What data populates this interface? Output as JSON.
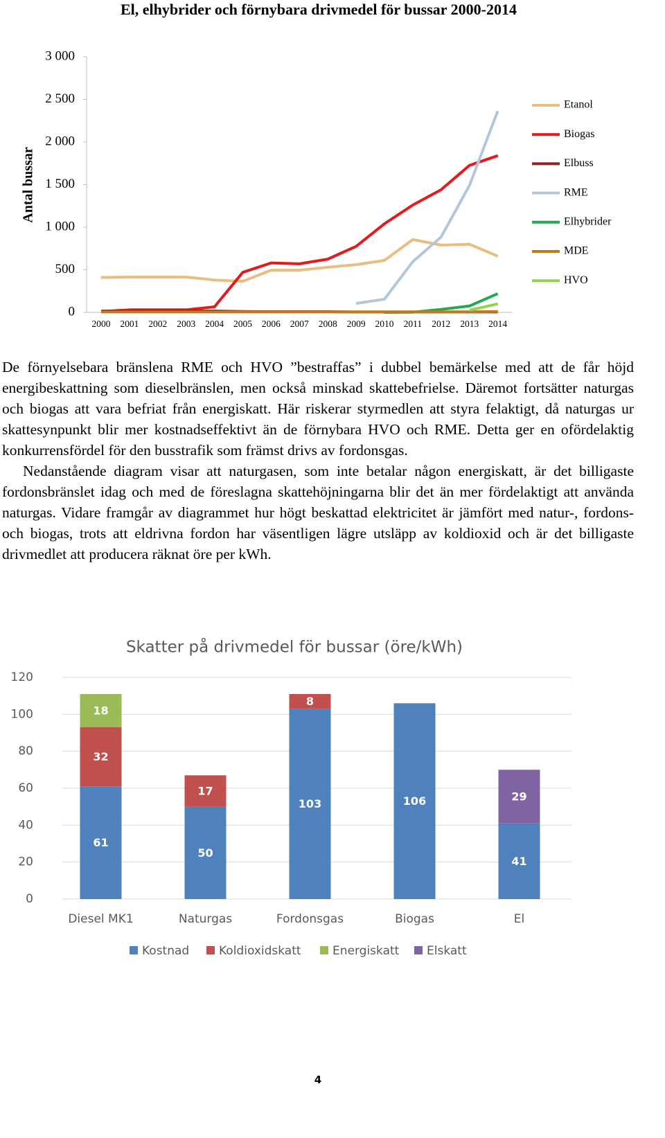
{
  "chart_data": [
    {
      "type": "line",
      "title": "El, elhybrider och förnybara drivmedel för bussar 2000-2014",
      "y_label": "Antal bussar",
      "categories": [
        "2000",
        "2001",
        "2002",
        "2003",
        "2004",
        "2005",
        "2006",
        "2007",
        "2008",
        "2009",
        "2010",
        "2011",
        "2012",
        "2013",
        "2014"
      ],
      "ylim": [
        0,
        3000
      ],
      "yticks": [
        0,
        500,
        {
          "value": 1000,
          "label": "1 000"
        },
        {
          "value": 1500,
          "label": "1 500"
        },
        {
          "value": 2000,
          "label": "2 000"
        },
        {
          "value": 2500,
          "label": "2 500"
        },
        {
          "value": 3000,
          "label": "3 000"
        }
      ],
      "grid": false,
      "legend": "right",
      "series": [
        {
          "name": "Etanol",
          "color": "#e9bd7f",
          "values": [
            410,
            415,
            415,
            415,
            380,
            365,
            495,
            495,
            530,
            560,
            610,
            855,
            790,
            800,
            660
          ]
        },
        {
          "name": "Biogas",
          "color": "#e41a1c",
          "values": [
            10,
            30,
            30,
            30,
            65,
            470,
            580,
            570,
            625,
            775,
            1040,
            1260,
            1440,
            1725,
            1840
          ]
        },
        {
          "name": "Elbuss",
          "color": "#8b2323",
          "values": [
            15,
            15,
            15,
            15,
            15,
            10,
            8,
            8,
            8,
            5,
            5,
            5,
            5,
            5,
            5
          ]
        },
        {
          "name": "RME",
          "color": "#b4c7da",
          "values": [
            null,
            null,
            null,
            null,
            null,
            null,
            null,
            null,
            null,
            105,
            155,
            595,
            885,
            1490,
            2365
          ]
        },
        {
          "name": "Elhybrider",
          "color": "#1faa50",
          "values": [
            null,
            null,
            null,
            null,
            null,
            null,
            null,
            null,
            null,
            null,
            0,
            2,
            35,
            75,
            220
          ]
        },
        {
          "name": "MDE",
          "color": "#c07a1a",
          "values": [
            5,
            5,
            5,
            5,
            5,
            5,
            5,
            5,
            5,
            5,
            5,
            5,
            5,
            5,
            10
          ]
        },
        {
          "name": "HVO",
          "color": "#92d050",
          "values": [
            null,
            null,
            null,
            null,
            null,
            null,
            null,
            null,
            null,
            null,
            null,
            null,
            null,
            25,
            100
          ]
        }
      ]
    },
    {
      "type": "bar",
      "stacked": true,
      "title": "Skatter på drivmedel för bussar (öre/kWh)",
      "categories": [
        "Diesel MK1",
        "Naturgas",
        "Fordonsgas",
        "Biogas",
        "El"
      ],
      "ylim": [
        0,
        120
      ],
      "yticks": [
        0,
        20,
        40,
        60,
        80,
        100,
        120
      ],
      "grid": true,
      "legend": "bottom",
      "series": [
        {
          "name": "Kostnad",
          "color": "#4f81bd",
          "values": [
            61,
            50,
            103,
            106,
            41
          ]
        },
        {
          "name": "Koldioxidskatt",
          "color": "#c0504d",
          "values": [
            32,
            17,
            8,
            null,
            null
          ]
        },
        {
          "name": "Energiskatt",
          "color": "#9bbb59",
          "values": [
            18,
            null,
            null,
            null,
            null
          ]
        },
        {
          "name": "Elskatt",
          "color": "#8064a2",
          "values": [
            null,
            null,
            null,
            null,
            29
          ]
        }
      ]
    }
  ],
  "paragraphs": [
    "De förnyelsebara bränslena RME och HVO ”bestraffas” i dubbel bemärkelse med att de får höjd energibeskattning som dieselbränslen, men också minskad skattebefrielse. Däremot fortsätter naturgas och biogas att vara befriat från energiskatt. Här riskerar styrmedlen att styra felaktigt, då naturgas ur skattesynpunkt blir mer kostnadseffektivt än de förnybara HVO och RME. Detta ger en ofördelaktig konkurrensfördel för den busstrafik som främst drivs av fordonsgas.",
    "Nedanstående diagram visar att naturgasen, som inte betalar någon energiskatt, är det billigaste fordonsbränslet idag och med de föreslagna skattehöjningarna blir det än mer fördelaktigt att använda naturgas. Vidare framgår av diagrammet hur högt beskattad elektricitet är jämfört med natur-, fordons- och biogas, trots att eldrivna fordon har väsentligen lägre utsläpp av koldioxid och är det billigaste drivmedlet att producera räknat öre per kWh."
  ],
  "page_number": "4"
}
